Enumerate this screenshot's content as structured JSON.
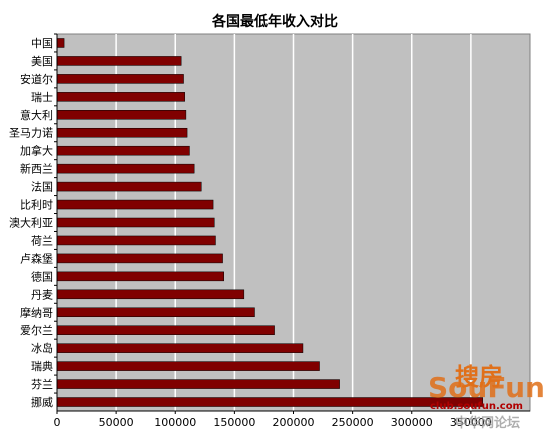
{
  "chart_data": {
    "type": "bar",
    "orientation": "horizontal",
    "title": "各国最低年收入对比",
    "xlabel": "",
    "ylabel": "",
    "categories": [
      "中国",
      "美国",
      "安道尔",
      "瑞士",
      "意大利",
      "圣马力诺",
      "加拿大",
      "新西兰",
      "法国",
      "比利时",
      "澳大利亚",
      "荷兰",
      "卢森堡",
      "德国",
      "丹麦",
      "摩纳哥",
      "爱尔兰",
      "冰岛",
      "瑞典",
      "芬兰",
      "挪威"
    ],
    "values": [
      6000,
      105000,
      107000,
      108000,
      109000,
      110000,
      112000,
      116000,
      122000,
      132000,
      133000,
      134000,
      140000,
      141000,
      158000,
      167000,
      184000,
      208000,
      222000,
      239000,
      360000
    ],
    "xlim": [
      0,
      400000
    ],
    "xticks": [
      0,
      50000,
      100000,
      150000,
      200000,
      250000,
      300000,
      350000
    ],
    "xtick_labels": [
      "0",
      "50000",
      "100000",
      "150000",
      "200000",
      "250000",
      "300000",
      "350000"
    ],
    "grid": true,
    "legend": "none",
    "plot_background": "#c0c0c0",
    "bar_color": "#800000",
    "grid_color": "#ffffff"
  },
  "watermark": {
    "top": "搜房",
    "brand": "SouFun",
    "url": "club.soufun.com",
    "bottom": "中华网论坛",
    "color_brand": "#e0701a",
    "color_url": "#b00000"
  }
}
